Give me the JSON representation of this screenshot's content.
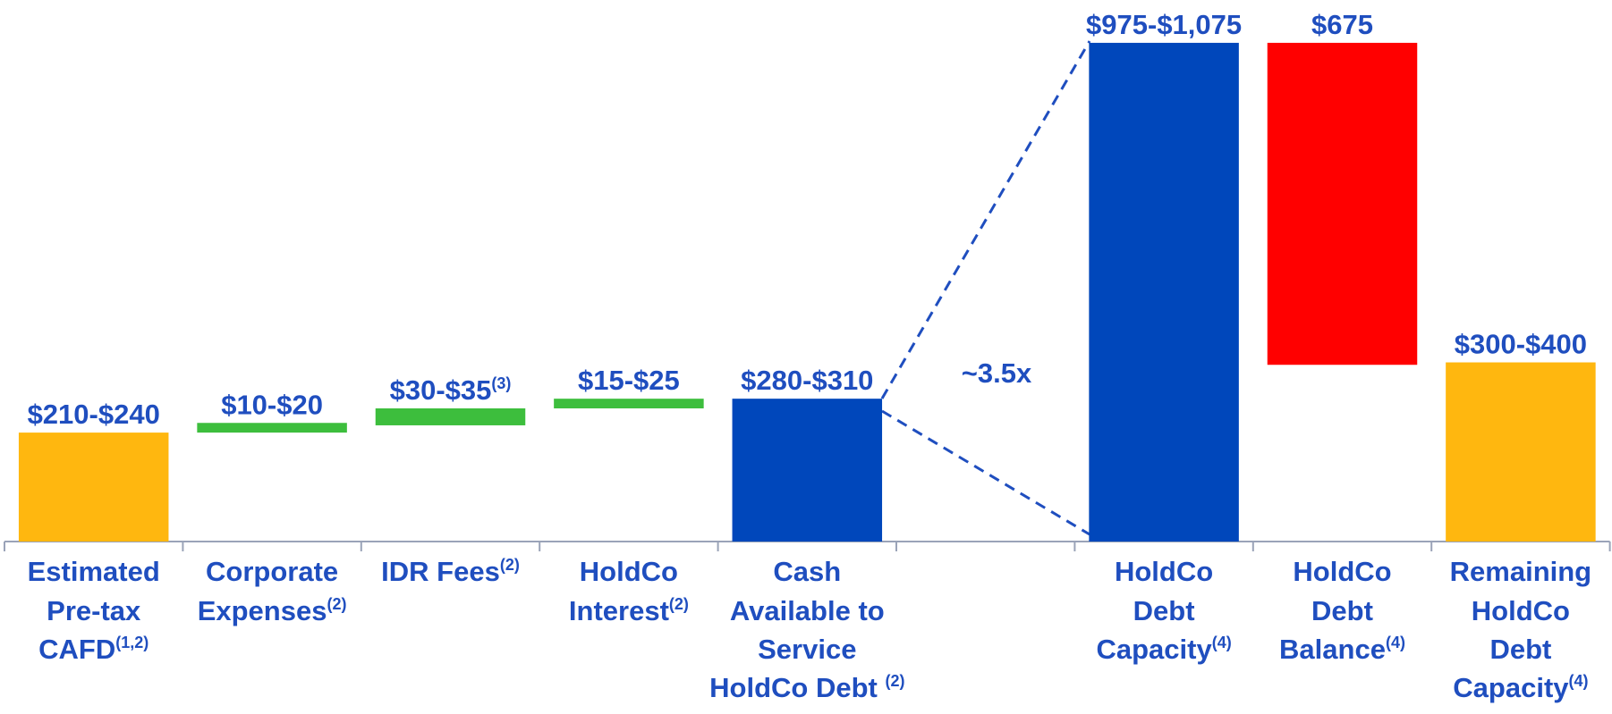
{
  "chart_data": {
    "type": "floating_bar",
    "categories": [
      {
        "lines": [
          "Estimated",
          "Pre-tax",
          "CAFD"
        ],
        "note": "(1,2)"
      },
      {
        "lines": [
          "Corporate",
          "Expenses"
        ],
        "note": "(2)"
      },
      {
        "lines": [
          "IDR Fees"
        ],
        "note": "(2)"
      },
      {
        "lines": [
          "HoldCo",
          "Interest"
        ],
        "note": "(2)"
      },
      {
        "lines": [
          "Cash",
          "Available to",
          "Service",
          "HoldCo Debt "
        ],
        "note": "(2)"
      },
      null,
      {
        "lines": [
          "HoldCo",
          "Debt",
          "Capacity"
        ],
        "note": "(4)"
      },
      {
        "lines": [
          "HoldCo",
          "Debt",
          "Balance"
        ],
        "note": "(4)"
      },
      {
        "lines": [
          "Remaining",
          "HoldCo",
          "Debt",
          "Capacity"
        ],
        "note": "(4)"
      }
    ],
    "ranges": [
      [
        0,
        225
      ],
      [
        225,
        245
      ],
      [
        240,
        275
      ],
      [
        275,
        295
      ],
      [
        0,
        295
      ],
      null,
      [
        0,
        1030
      ],
      [
        365,
        1030
      ],
      [
        0,
        370
      ]
    ],
    "value_labels": [
      "$210-$240",
      "$10-$20",
      "$30-$35",
      "$15-$25",
      "$280-$310",
      null,
      "$975-$1,075",
      "$675",
      "$300-$400"
    ],
    "value_label_notes": [
      null,
      null,
      "(3)",
      null,
      null,
      null,
      null,
      null,
      null
    ],
    "colors": [
      "#FFB70F",
      "#3DBE3D",
      "#3DBE3D",
      "#3DBE3D",
      "#0047BB",
      null,
      "#0047BB",
      "#FF0000",
      "#FFB70F"
    ],
    "annotation": "~3.5x",
    "ylim": [
      0,
      1100
    ]
  }
}
